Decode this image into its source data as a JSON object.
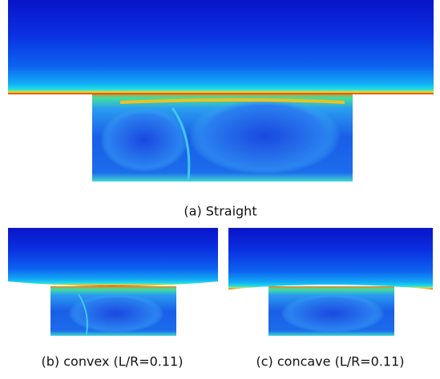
{
  "figure": {
    "panels": [
      {
        "caption": "(a) Straight"
      },
      {
        "caption": "(b) convex (L/R=0.11)"
      },
      {
        "caption": "(c) concave (L/R=0.11)"
      }
    ]
  }
}
